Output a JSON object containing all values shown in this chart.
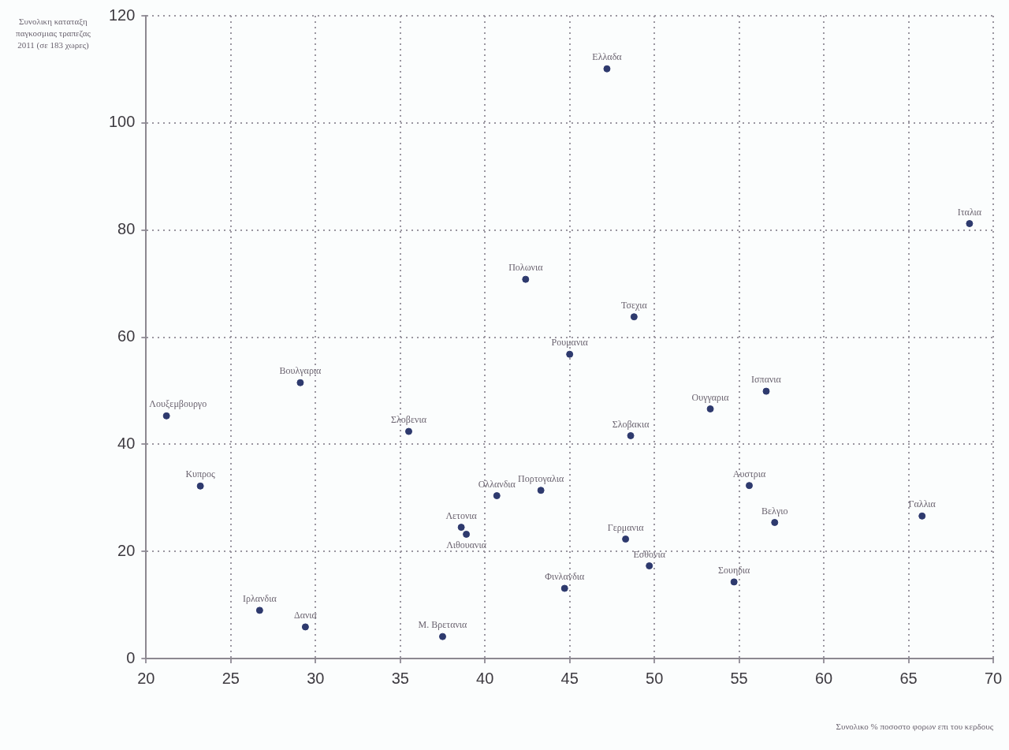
{
  "chart_data": {
    "type": "scatter",
    "ylabel": "Συνολικη καταταξη παγκοσμιας τραπεζας 2011 (σε 183 χωρες)",
    "xlabel": "Συνολικο % ποσοστο φορων επι του κερδους",
    "x": [
      21.2,
      23.2,
      29.1,
      26.7,
      29.4,
      35.5,
      37.5,
      38.6,
      38.9,
      40.7,
      43.3,
      42.4,
      45.0,
      47.2,
      48.8,
      48.6,
      48.3,
      49.7,
      44.7,
      53.3,
      56.6,
      55.6,
      57.1,
      54.7,
      65.8,
      68.6
    ],
    "values": [
      45.3,
      32.2,
      51.5,
      9,
      5.9,
      42.4,
      4.1,
      24.5,
      23.2,
      30.4,
      31.4,
      70.8,
      56.8,
      110.1,
      63.8,
      41.6,
      22.3,
      17.3,
      13.1,
      46.6,
      49.9,
      32.3,
      25.4,
      14.3,
      26.6,
      81.2
    ],
    "color": "#2e3a6e",
    "marker": "circle",
    "grid": true,
    "legend": false,
    "xlim": [
      20,
      70
    ],
    "xticks": [
      20,
      25,
      30,
      35,
      40,
      45,
      50,
      55,
      60,
      65,
      70
    ],
    "ylim": [
      0,
      120
    ],
    "yticks": [
      0,
      20,
      40,
      60,
      80,
      100,
      120
    ],
    "annotations": [
      {
        "text": "Λουξεμβουργο",
        "x": 21.2,
        "y": 45.3
      },
      {
        "text": "Κυπρος",
        "x": 23.2,
        "y": 32.2
      },
      {
        "text": "Βουλγαρια",
        "x": 29.1,
        "y": 51.5
      },
      {
        "text": "Ιρλανδια",
        "x": 26.7,
        "y": 9
      },
      {
        "text": "Δανια",
        "x": 29.4,
        "y": 5.9
      },
      {
        "text": "Σλοβενια",
        "x": 35.5,
        "y": 42.4
      },
      {
        "text": "Μ. Βρετανια",
        "x": 37.5,
        "y": 4.1
      },
      {
        "text": "Λετονια",
        "x": 38.6,
        "y": 24.5
      },
      {
        "text": "Λιθουανια",
        "x": 38.9,
        "y": 23.2
      },
      {
        "text": "Ολλανδια",
        "x": 40.7,
        "y": 30.4
      },
      {
        "text": "Πορτογαλια",
        "x": 43.3,
        "y": 31.4
      },
      {
        "text": "Πολωνια",
        "x": 42.4,
        "y": 70.8
      },
      {
        "text": "Ρουμανια",
        "x": 45.0,
        "y": 56.8
      },
      {
        "text": "Ελλαδα",
        "x": 47.2,
        "y": 110.1
      },
      {
        "text": "Τσεχια",
        "x": 48.8,
        "y": 63.8
      },
      {
        "text": "Σλοβακια",
        "x": 48.6,
        "y": 41.6
      },
      {
        "text": "Γερμανια",
        "x": 48.3,
        "y": 22.3
      },
      {
        "text": "Εσθονια",
        "x": 49.7,
        "y": 17.3
      },
      {
        "text": "Φινλανδια",
        "x": 44.7,
        "y": 13.1
      },
      {
        "text": "Ουγγαρια",
        "x": 53.3,
        "y": 46.6
      },
      {
        "text": "Ισπανια",
        "x": 56.6,
        "y": 49.9
      },
      {
        "text": "Αυστρια",
        "x": 55.6,
        "y": 32.3
      },
      {
        "text": "Βελγιο",
        "x": 57.1,
        "y": 25.4
      },
      {
        "text": "Σουηδια",
        "x": 54.7,
        "y": 14.3
      },
      {
        "text": "Γαλλια",
        "x": 65.8,
        "y": 26.6
      },
      {
        "text": "Ιταλια",
        "x": 68.6,
        "y": 81.2
      }
    ]
  }
}
